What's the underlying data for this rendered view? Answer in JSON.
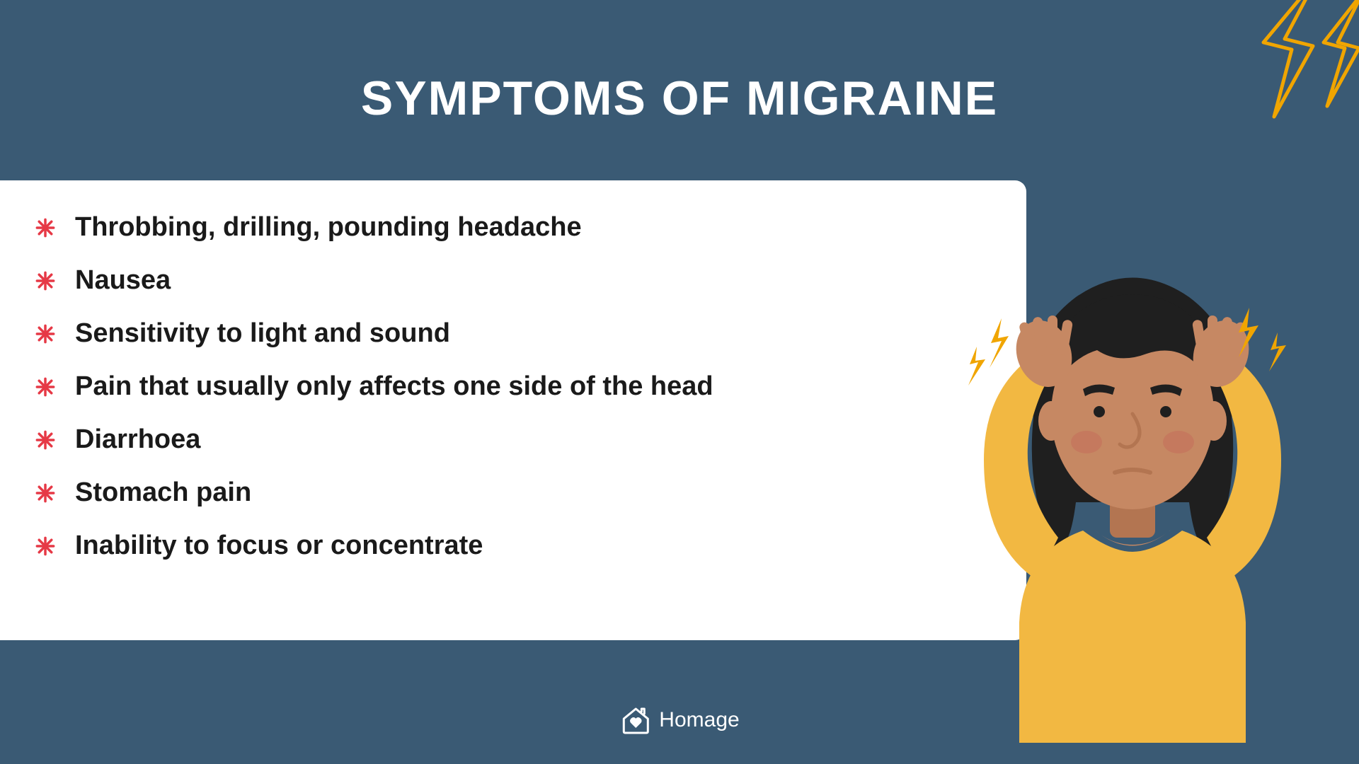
{
  "colors": {
    "background": "#3a5a74",
    "content_box_bg": "#ffffff",
    "title_color": "#ffffff",
    "text_color": "#1a1a1a",
    "bullet_color": "#e63946",
    "lightning_stroke": "#f0a500",
    "skin": "#c68863",
    "skin_dark": "#b37551",
    "hair": "#1f1f1f",
    "shirt": "#f2b842",
    "blush": "#c4705c",
    "pain_bolt": "#f0a500"
  },
  "title": "SYMPTOMS OF MIGRAINE",
  "title_fontsize": 68,
  "symptoms": [
    "Throbbing, drilling, pounding headache",
    "Nausea",
    "Sensitivity to light and sound",
    "Pain that usually only affects one side of the head",
    "Diarrhoea",
    "Stomach pain",
    "Inability to focus or concentrate"
  ],
  "symptom_fontsize": 38,
  "footer_brand": "Homage",
  "footer_fontsize": 30,
  "bullet_size": 28
}
